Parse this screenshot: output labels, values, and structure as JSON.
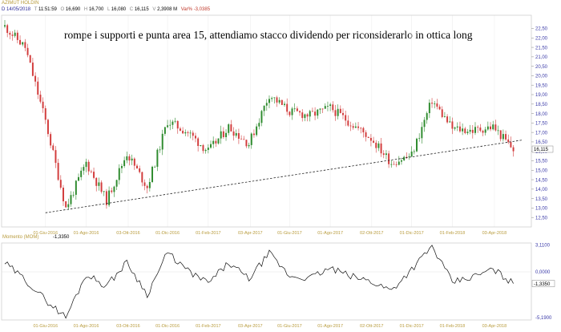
{
  "header": {
    "instrument": "AZIMUT HOLDIN",
    "date": "14/05/2018",
    "time": "11:51:59",
    "open": "16,690",
    "high": "16,700",
    "low": "16,080",
    "close": "16,115",
    "volume": "2,3908 M",
    "var_pct": "Var% -3,0385",
    "markers": {
      "date": "D",
      "time": "T",
      "open": "O",
      "high": "H",
      "low": "L",
      "close": "C",
      "volume": "V"
    }
  },
  "annotation": "rompe i supporti e punta area 15, attendiamo stacco dividendo per riconsiderarlo in ottica long",
  "indicator": {
    "title": "Momento (MOM)",
    "value": "-1,3350"
  },
  "colors": {
    "up": "#2e8b2e",
    "down": "#d23c3c",
    "axis": "#3a3aa8",
    "date": "#b89b3c",
    "header_date": "#2a2a99"
  },
  "chart_data": [
    {
      "type": "candlestick",
      "title": "",
      "ylim": [
        12.0,
        23.2
      ],
      "y_ticks": [
        "22,50",
        "22,00",
        "21,50",
        "21,00",
        "20,50",
        "20,00",
        "19,50",
        "19,00",
        "18,50",
        "18,00",
        "17,50",
        "17,00",
        "16,50",
        "16,00",
        "15,50",
        "15,00",
        "14,50",
        "14,00",
        "13,50",
        "13,00",
        "12,50"
      ],
      "x_labels": [
        "01-Giu-2016",
        "01-Ago-2016",
        "03-Ott-2016",
        "01-Dic-2016",
        "01-Feb-2017",
        "03-Apr-2017",
        "01-Giu-2017",
        "01-Ago-2017",
        "02-Ott-2017",
        "01-Dic-2017",
        "01-Feb-2018",
        "03-Apr-2018"
      ],
      "last_price_label": "16,115",
      "trendline": {
        "from": [
          "2016-06",
          12.75
        ],
        "to": [
          "2018-05",
          16.6
        ]
      },
      "x": [
        "2016-04",
        "2016-05",
        "2016-06",
        "2016-07",
        "2016-08",
        "2016-09",
        "2016-10",
        "2016-11",
        "2016-12",
        "2017-01",
        "2017-02",
        "2017-03",
        "2017-04",
        "2017-05",
        "2017-06",
        "2017-07",
        "2017-08",
        "2017-09",
        "2017-10",
        "2017-11",
        "2017-12",
        "2018-01",
        "2018-02",
        "2018-03",
        "2018-04",
        "2018-05"
      ],
      "close": [
        22.6,
        21.5,
        17.6,
        13.0,
        15.4,
        13.4,
        15.9,
        14.1,
        17.6,
        17.0,
        16.0,
        17.3,
        16.4,
        19.0,
        18.1,
        17.9,
        18.3,
        17.5,
        16.7,
        15.4,
        15.8,
        18.7,
        17.2,
        17.1,
        17.3,
        16.1
      ]
    },
    {
      "type": "line",
      "title": "Momento (MOM)",
      "ylim": [
        -5.5,
        3.3
      ],
      "y_ticks": [
        "3,1100",
        "0,0000",
        "-5,1900"
      ],
      "x_labels": [
        "01-Giu-2016",
        "01-Ago-2016",
        "03-Ott-2016",
        "01-Dic-2016",
        "01-Feb-2017",
        "03-Apr-2017",
        "01-Giu-2017",
        "01-Ago-2017",
        "02-Ott-2017",
        "01-Dic-2017",
        "01-Feb-2018",
        "03-Apr-2018"
      ],
      "last_value_label": "-1,3350",
      "zero_line": true,
      "x": [
        "2016-04",
        "2016-05",
        "2016-06",
        "2016-07",
        "2016-08",
        "2016-09",
        "2016-10",
        "2016-11",
        "2016-12",
        "2017-01",
        "2017-02",
        "2017-03",
        "2017-04",
        "2017-05",
        "2017-06",
        "2017-07",
        "2017-08",
        "2017-09",
        "2017-10",
        "2017-11",
        "2017-12",
        "2018-01",
        "2018-02",
        "2018-03",
        "2018-04",
        "2018-05"
      ],
      "values": [
        1.0,
        -0.9,
        -3.2,
        -5.2,
        -0.3,
        -1.6,
        1.1,
        -2.6,
        2.2,
        0.1,
        -1.3,
        1.0,
        -0.8,
        2.1,
        -0.5,
        -0.7,
        0.4,
        -0.5,
        -1.1,
        -2.1,
        0.3,
        2.9,
        -1.2,
        -0.6,
        0.3,
        -1.335
      ]
    }
  ]
}
